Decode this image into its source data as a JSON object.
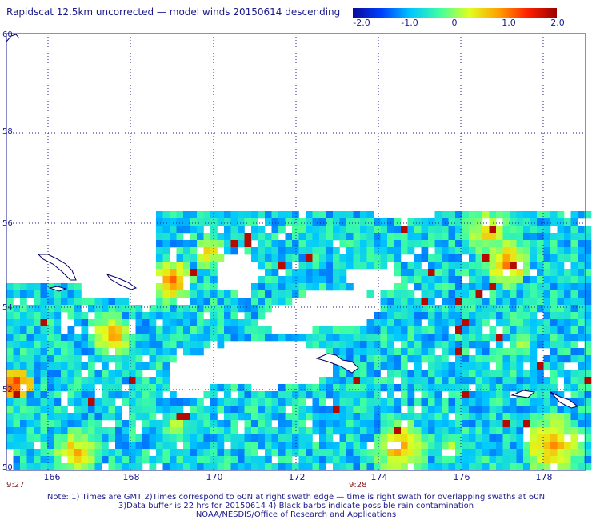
{
  "title": "Rapidscat 12.5km uncorrected — model winds 20150614 descending",
  "colorbar": {
    "labels": [
      "-2.0",
      "-1.0",
      "0",
      "1.0",
      "2.0"
    ],
    "stops": [
      "#0a0a9a",
      "#0040ff",
      "#00c8ff",
      "#40ffa0",
      "#e0ff20",
      "#ffa000",
      "#ff2000",
      "#9a0000"
    ]
  },
  "axes": {
    "lat_labels": [
      "60",
      "58",
      "56",
      "54",
      "52",
      "50"
    ],
    "lon_labels": [
      "166",
      "168",
      "170",
      "172",
      "174",
      "176",
      "178"
    ]
  },
  "times": {
    "left": "9:27",
    "mid": "9:28"
  },
  "notes": {
    "line1": "Note: 1) Times are GMT 2)Times correspond to 60N at right swath edge — time is right swath for overlapping swaths at 60N",
    "line2": "3)Data buffer is 22 hrs for 20150614 4) Black barbs indicate possible rain contamination",
    "line3": "NOAA/NESDIS/Office of Research and Applications"
  },
  "map_colors": {
    "frame": "#1a1a8c",
    "grid": "#1a1a8c",
    "coast": "#000066",
    "land_fill": "#ffffff"
  }
}
